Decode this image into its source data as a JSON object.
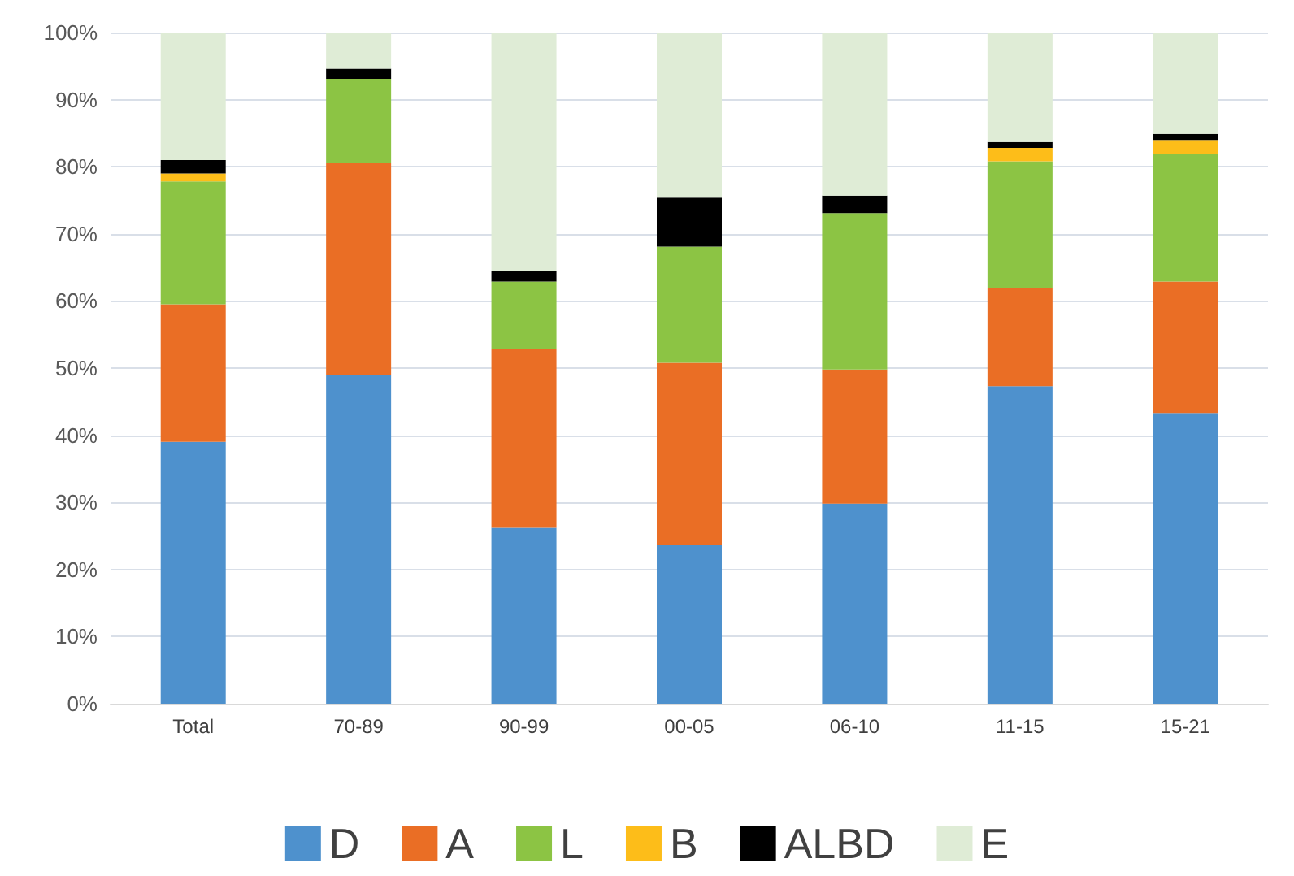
{
  "chart_data": {
    "type": "bar",
    "stacked": true,
    "categories": [
      "Total",
      "70-89",
      "90-99",
      "00-05",
      "06-10",
      "11-15",
      "15-21"
    ],
    "series": [
      {
        "name": "D",
        "color": "#4e91cd",
        "values": [
          39.0,
          49.0,
          26.2,
          23.6,
          29.8,
          47.3,
          43.3
        ]
      },
      {
        "name": "A",
        "color": "#ea6e25",
        "values": [
          20.5,
          31.6,
          26.6,
          27.2,
          20.0,
          14.6,
          19.6
        ]
      },
      {
        "name": "L",
        "color": "#8cc444",
        "values": [
          18.3,
          12.5,
          10.1,
          17.3,
          23.3,
          18.9,
          19.0
        ]
      },
      {
        "name": "B",
        "color": "#fdbd19",
        "values": [
          1.2,
          0,
          0,
          0,
          0,
          2.0,
          2.1
        ]
      },
      {
        "name": "ALBD",
        "color": "#000000",
        "values": [
          2.0,
          1.5,
          1.6,
          7.3,
          2.6,
          0.9,
          0.9
        ]
      },
      {
        "name": "E",
        "color": "#dfecd6",
        "values": [
          19.0,
          5.4,
          35.5,
          24.6,
          24.3,
          16.3,
          15.1
        ]
      }
    ],
    "ylim": [
      0,
      100
    ],
    "yticks": [
      {
        "value": 0,
        "label": "0%"
      },
      {
        "value": 10,
        "label": "10%"
      },
      {
        "value": 20,
        "label": "20%"
      },
      {
        "value": 30,
        "label": "30%"
      },
      {
        "value": 40,
        "label": "40%"
      },
      {
        "value": 50,
        "label": "50%"
      },
      {
        "value": 60,
        "label": "60%"
      },
      {
        "value": 70,
        "label": "70%"
      },
      {
        "value": 80,
        "label": "80%"
      },
      {
        "value": 90,
        "label": "90%"
      },
      {
        "value": 100,
        "label": "100%"
      }
    ],
    "grid": "y",
    "legend": "bottom"
  }
}
